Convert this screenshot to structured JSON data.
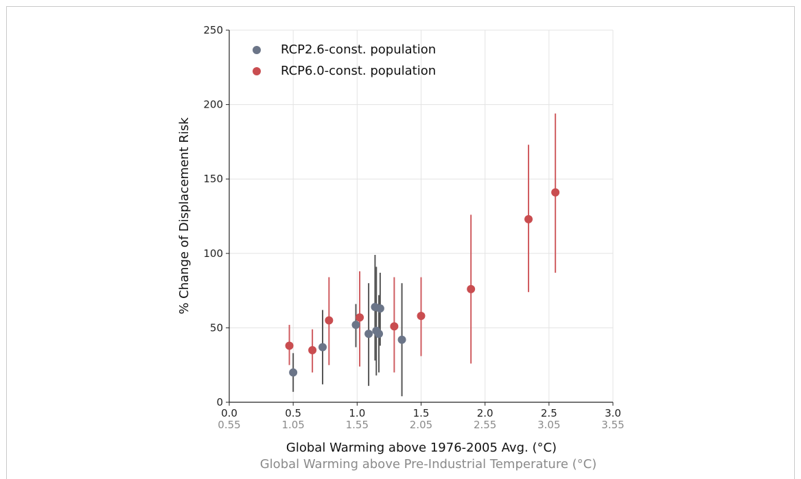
{
  "chart_data": {
    "type": "scatter",
    "xlabel": "Global Warming above 1976-2005 Avg. (°C)",
    "xlabel2": "Global Warming above Pre-Industrial Temperature (°C)",
    "ylabel": "% Change of Displacement Risk",
    "xlim": [
      0.0,
      3.0
    ],
    "ylim": [
      0,
      250
    ],
    "xticks": [
      0.0,
      0.5,
      1.0,
      1.5,
      2.0,
      2.5,
      3.0
    ],
    "xtick_labels": [
      "0.0",
      "0.5",
      "1.0",
      "1.5",
      "2.0",
      "2.5",
      "3.0"
    ],
    "xtick_labels2": [
      "0.55",
      "1.05",
      "1.55",
      "2.05",
      "2.55",
      "3.05",
      "3.55"
    ],
    "yticks": [
      0,
      50,
      100,
      150,
      200,
      250
    ],
    "ytick_labels": [
      "0",
      "50",
      "100",
      "150",
      "200",
      "250"
    ],
    "grid": true,
    "legend_position": "top-left",
    "series": [
      {
        "name": "RCP2.6-const. population",
        "color": "#6b7588",
        "bar_color": "#555555",
        "points": [
          {
            "x": 0.5,
            "y": 20,
            "ylow": 7,
            "yhigh": 33
          },
          {
            "x": 0.73,
            "y": 37,
            "ylow": 12,
            "yhigh": 62
          },
          {
            "x": 0.99,
            "y": 52,
            "ylow": 37,
            "yhigh": 66
          },
          {
            "x": 1.09,
            "y": 46,
            "ylow": 11,
            "yhigh": 80
          },
          {
            "x": 1.14,
            "y": 64,
            "ylow": 28,
            "yhigh": 99
          },
          {
            "x": 1.15,
            "y": 48,
            "ylow": 18,
            "yhigh": 91
          },
          {
            "x": 1.17,
            "y": 46,
            "ylow": 20,
            "yhigh": 72
          },
          {
            "x": 1.18,
            "y": 63,
            "ylow": 38,
            "yhigh": 87
          },
          {
            "x": 1.35,
            "y": 42,
            "ylow": 4,
            "yhigh": 80
          }
        ]
      },
      {
        "name": "RCP6.0-const. population",
        "color": "#c94d50",
        "bar_color": "#cf5b5f",
        "points": [
          {
            "x": 0.47,
            "y": 38,
            "ylow": 25,
            "yhigh": 52
          },
          {
            "x": 0.65,
            "y": 35,
            "ylow": 20,
            "yhigh": 49
          },
          {
            "x": 0.78,
            "y": 55,
            "ylow": 25,
            "yhigh": 84
          },
          {
            "x": 1.02,
            "y": 57,
            "ylow": 24,
            "yhigh": 88
          },
          {
            "x": 1.29,
            "y": 51,
            "ylow": 20,
            "yhigh": 84
          },
          {
            "x": 1.5,
            "y": 58,
            "ylow": 31,
            "yhigh": 84
          },
          {
            "x": 1.89,
            "y": 76,
            "ylow": 26,
            "yhigh": 126
          },
          {
            "x": 2.34,
            "y": 123,
            "ylow": 74,
            "yhigh": 173
          },
          {
            "x": 2.55,
            "y": 141,
            "ylow": 87,
            "yhigh": 194
          }
        ]
      }
    ]
  }
}
